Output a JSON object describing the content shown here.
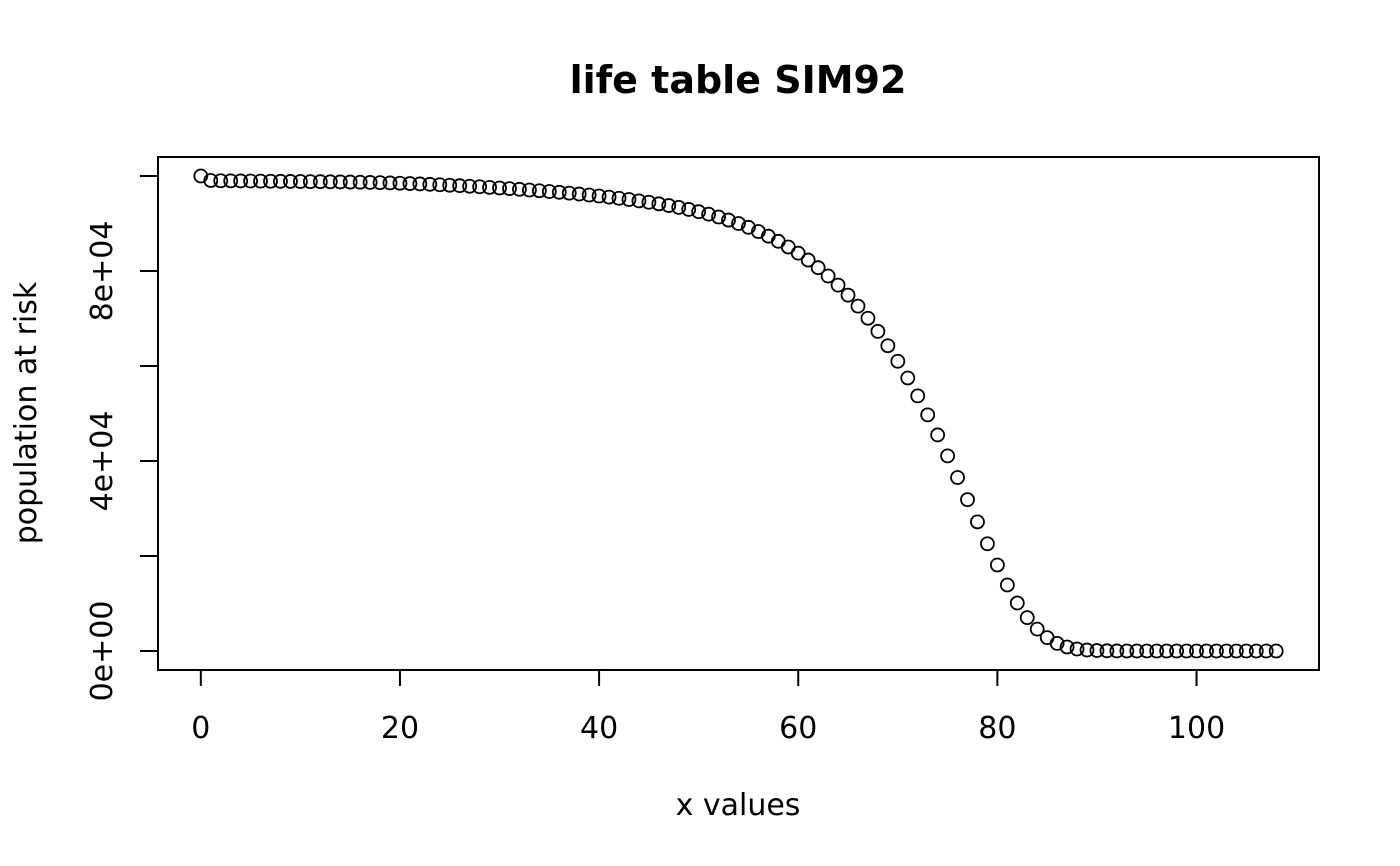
{
  "chart_data": {
    "type": "scatter",
    "title": "life table SIM92",
    "xlabel": "x values",
    "ylabel": "population at risk",
    "xlim": [
      -4.3,
      112.3
    ],
    "ylim": [
      -4000,
      104000
    ],
    "x_ticks": [
      0,
      20,
      40,
      60,
      80,
      100
    ],
    "x_tick_labels": [
      "0",
      "20",
      "40",
      "60",
      "80",
      "100"
    ],
    "y_ticks": [
      0,
      20000,
      40000,
      60000,
      80000,
      100000
    ],
    "y_tick_labels": [
      "0e+00",
      "",
      "4e+04",
      "",
      "8e+04",
      ""
    ],
    "grid": false,
    "legend": null,
    "marker": "open-circle",
    "color": "#000000",
    "series": [
      {
        "x": [
          0,
          1,
          2,
          3,
          4,
          5,
          6,
          7,
          8,
          9,
          10,
          11,
          12,
          13,
          14,
          15,
          16,
          17,
          18,
          19,
          20,
          21,
          22,
          23,
          24,
          25,
          26,
          27,
          28,
          29,
          30,
          31,
          32,
          33,
          34,
          35,
          36,
          37,
          38,
          39,
          40,
          41,
          42,
          43,
          44,
          45,
          46,
          47,
          48,
          49,
          50,
          51,
          52,
          53,
          54,
          55,
          56,
          57,
          58,
          59,
          60,
          61,
          62,
          63,
          64,
          65,
          66,
          67,
          68,
          69,
          70,
          71,
          72,
          73,
          74,
          75,
          76,
          77,
          78,
          79,
          80,
          81,
          82,
          83,
          84,
          85,
          86,
          87,
          88,
          89,
          90,
          91,
          92,
          93,
          94,
          95,
          96,
          97,
          98,
          99,
          100,
          101,
          102,
          103,
          104,
          105,
          106,
          107,
          108
        ],
        "values": [
          100000,
          99060,
          99000,
          98980,
          98960,
          98940,
          98920,
          98900,
          98880,
          98860,
          98840,
          98820,
          98800,
          98780,
          98750,
          98720,
          98690,
          98650,
          98600,
          98540,
          98480,
          98410,
          98330,
          98250,
          98160,
          98060,
          97960,
          97850,
          97730,
          97610,
          97480,
          97340,
          97200,
          97050,
          96900,
          96740,
          96570,
          96390,
          96200,
          96000,
          95790,
          95560,
          95310,
          95050,
          94770,
          94470,
          94140,
          93780,
          93390,
          92960,
          92490,
          91960,
          91370,
          90720,
          90000,
          89200,
          88310,
          87330,
          86250,
          85060,
          83750,
          82300,
          80700,
          78950,
          77030,
          74920,
          72600,
          70060,
          67290,
          64270,
          61000,
          57480,
          53710,
          49710,
          45490,
          41080,
          36520,
          31870,
          27190,
          22580,
          18110,
          13900,
          10100,
          7020,
          4600,
          2820,
          1600,
          850,
          420,
          200,
          90,
          40,
          15,
          6,
          2,
          1,
          0,
          0,
          0,
          0,
          0,
          0,
          0,
          0,
          0,
          0,
          0,
          0,
          0
        ]
      }
    ]
  }
}
